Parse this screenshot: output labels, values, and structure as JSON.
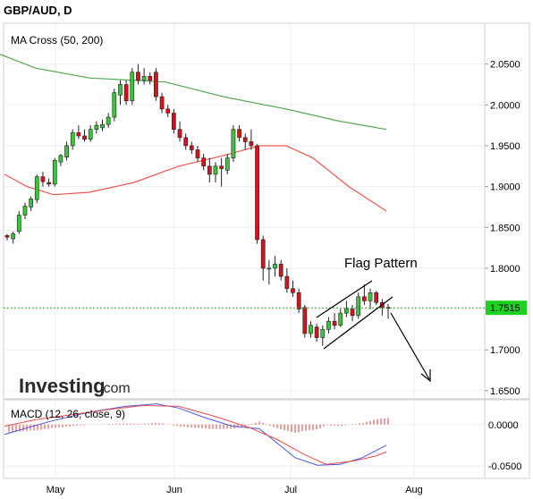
{
  "header": {
    "title": "GBP/AUD, D"
  },
  "logo": {
    "main": "Investing",
    "suffix": ".com"
  },
  "colors": {
    "up_candle": "#3cc23c",
    "down_candle": "#d8121a",
    "ma50": "#ee5550",
    "ma200": "#4ea84e",
    "last_price_line": "#22aa22",
    "last_price_badge": "#1fd11f",
    "macd_line": "#4a59e0",
    "signal_line": "#ee4c4c",
    "histogram": "#e23b3b"
  },
  "chart_data": [
    {
      "type": "candlestick",
      "title": "MA Cross (50, 200)",
      "x_ticks": [
        "May",
        "Jun",
        "Jul",
        "Aug"
      ],
      "y_ticks": [
        "2.0500",
        "2.0000",
        "1.9500",
        "1.9000",
        "1.8500",
        "1.8000",
        "1.7500",
        "1.7000",
        "1.6500"
      ],
      "ylim": [
        1.64,
        2.1
      ],
      "last_price": "1.7515",
      "annotation": "Flag Pattern",
      "candles": [
        [
          1.84,
          1.842,
          1.834,
          1.838
        ],
        [
          1.836,
          1.845,
          1.83,
          1.842
        ],
        [
          1.845,
          1.87,
          1.842,
          1.865
        ],
        [
          1.865,
          1.88,
          1.86,
          1.876
        ],
        [
          1.875,
          1.888,
          1.87,
          1.885
        ],
        [
          1.884,
          1.915,
          1.88,
          1.912
        ],
        [
          1.912,
          1.918,
          1.9,
          1.906
        ],
        [
          1.905,
          1.91,
          1.9,
          1.903
        ],
        [
          1.903,
          1.935,
          1.9,
          1.932
        ],
        [
          1.93,
          1.94,
          1.925,
          1.938
        ],
        [
          1.936,
          1.955,
          1.932,
          1.95
        ],
        [
          1.95,
          1.97,
          1.945,
          1.966
        ],
        [
          1.966,
          1.975,
          1.958,
          1.962
        ],
        [
          1.962,
          1.97,
          1.955,
          1.958
        ],
        [
          1.958,
          1.975,
          1.955,
          1.97
        ],
        [
          1.97,
          1.98,
          1.965,
          1.975
        ],
        [
          1.972,
          1.982,
          1.968,
          1.976
        ],
        [
          1.976,
          1.99,
          1.972,
          1.985
        ],
        [
          1.985,
          2.02,
          1.98,
          2.015
        ],
        [
          2.012,
          2.03,
          2.0,
          2.025
        ],
        [
          2.025,
          2.03,
          2.0,
          2.005
        ],
        [
          2.005,
          2.045,
          2.0,
          2.04
        ],
        [
          2.04,
          2.05,
          2.025,
          2.03
        ],
        [
          2.03,
          2.045,
          2.025,
          2.035
        ],
        [
          2.035,
          2.04,
          2.025,
          2.03
        ],
        [
          2.04,
          2.045,
          2.005,
          2.01
        ],
        [
          2.01,
          2.015,
          1.99,
          1.995
        ],
        [
          1.995,
          2.0,
          1.985,
          1.99
        ],
        [
          1.99,
          1.995,
          1.965,
          1.97
        ],
        [
          1.97,
          1.98,
          1.955,
          1.96
        ],
        [
          1.96,
          1.965,
          1.945,
          1.95
        ],
        [
          1.95,
          1.955,
          1.94,
          1.945
        ],
        [
          1.945,
          1.95,
          1.93,
          1.935
        ],
        [
          1.935,
          1.94,
          1.92,
          1.925
        ],
        [
          1.925,
          1.935,
          1.905,
          1.915
        ],
        [
          1.915,
          1.93,
          1.905,
          1.925
        ],
        [
          1.925,
          1.935,
          1.9,
          1.922
        ],
        [
          1.92,
          1.94,
          1.915,
          1.935
        ],
        [
          1.935,
          1.975,
          1.93,
          1.97
        ],
        [
          1.97,
          1.975,
          1.955,
          1.96
        ],
        [
          1.96,
          1.965,
          1.945,
          1.955
        ],
        [
          1.955,
          1.97,
          1.945,
          1.95
        ],
        [
          1.95,
          1.952,
          1.83,
          1.835
        ],
        [
          1.835,
          1.84,
          1.785,
          1.8
        ],
        [
          1.8,
          1.81,
          1.78,
          1.8
        ],
        [
          1.8,
          1.815,
          1.79,
          1.805
        ],
        [
          1.805,
          1.81,
          1.785,
          1.79
        ],
        [
          1.79,
          1.8,
          1.77,
          1.775
        ],
        [
          1.775,
          1.785,
          1.765,
          1.77
        ],
        [
          1.77,
          1.775,
          1.745,
          1.75
        ],
        [
          1.752,
          1.755,
          1.715,
          1.72
        ],
        [
          1.72,
          1.735,
          1.715,
          1.73
        ],
        [
          1.728,
          1.732,
          1.71,
          1.715
        ],
        [
          1.715,
          1.73,
          1.705,
          1.725
        ],
        [
          1.725,
          1.74,
          1.72,
          1.735
        ],
        [
          1.735,
          1.745,
          1.725,
          1.73
        ],
        [
          1.73,
          1.75,
          1.728,
          1.745
        ],
        [
          1.745,
          1.76,
          1.74,
          1.75
        ],
        [
          1.75,
          1.755,
          1.735,
          1.742
        ],
        [
          1.742,
          1.77,
          1.738,
          1.765
        ],
        [
          1.765,
          1.78,
          1.755,
          1.76
        ],
        [
          1.76,
          1.775,
          1.75,
          1.77
        ],
        [
          1.77,
          1.772,
          1.755,
          1.758
        ],
        [
          1.758,
          1.762,
          1.742,
          1.752
        ],
        [
          1.752,
          1.756,
          1.738,
          1.7515
        ]
      ],
      "ma200": [
        [
          0,
          2.062
        ],
        [
          40,
          2.045
        ],
        [
          100,
          2.033
        ],
        [
          185,
          2.028
        ],
        [
          250,
          2.01
        ],
        [
          320,
          1.995
        ],
        [
          380,
          1.98
        ],
        [
          432,
          1.97
        ]
      ],
      "ma50": [
        [
          5,
          1.915
        ],
        [
          30,
          1.9
        ],
        [
          60,
          1.89
        ],
        [
          100,
          1.893
        ],
        [
          150,
          1.905
        ],
        [
          200,
          1.925
        ],
        [
          250,
          1.938
        ],
        [
          290,
          1.95
        ],
        [
          320,
          1.95
        ],
        [
          350,
          1.935
        ],
        [
          390,
          1.9
        ],
        [
          432,
          1.87
        ]
      ]
    },
    {
      "type": "macd",
      "title": "MACD (12, 26, close, 9)",
      "y_ticks": [
        "0.0000",
        "-0.0500"
      ],
      "ylim": [
        -0.065,
        0.03
      ],
      "macd_line": [
        [
          5,
          -0.012
        ],
        [
          30,
          -0.004
        ],
        [
          60,
          0.005
        ],
        [
          100,
          0.015
        ],
        [
          140,
          0.022
        ],
        [
          175,
          0.025
        ],
        [
          200,
          0.02
        ],
        [
          230,
          0.008
        ],
        [
          260,
          -0.002
        ],
        [
          290,
          -0.005
        ],
        [
          305,
          -0.018
        ],
        [
          330,
          -0.04
        ],
        [
          355,
          -0.049
        ],
        [
          380,
          -0.048
        ],
        [
          405,
          -0.04
        ],
        [
          432,
          -0.025
        ]
      ],
      "signal_line": [
        [
          5,
          -0.002
        ],
        [
          40,
          0.006
        ],
        [
          80,
          0.012
        ],
        [
          120,
          0.018
        ],
        [
          160,
          0.023
        ],
        [
          200,
          0.022
        ],
        [
          240,
          0.01
        ],
        [
          280,
          -0.004
        ],
        [
          310,
          -0.018
        ],
        [
          340,
          -0.036
        ],
        [
          365,
          -0.048
        ],
        [
          395,
          -0.044
        ],
        [
          420,
          -0.038
        ],
        [
          432,
          -0.033
        ]
      ]
    }
  ]
}
